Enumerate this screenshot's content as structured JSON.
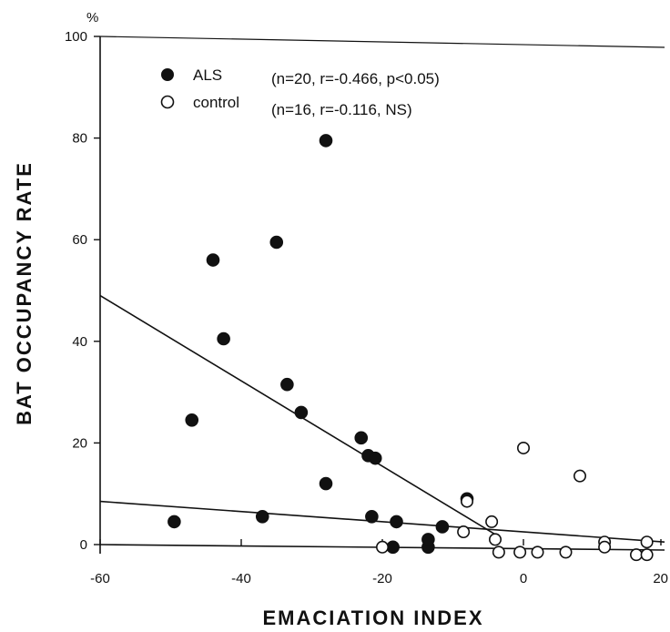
{
  "chart_data": {
    "type": "scatter",
    "xlabel": "EMACIATION INDEX",
    "ylabel": "BAT OCCUPANCY RATE",
    "yunit": "%",
    "xlim": [
      -60,
      20
    ],
    "ylim": [
      0,
      100
    ],
    "xticks": [
      -60,
      -40,
      -20,
      0,
      20
    ],
    "xtick_labels": [
      "-60",
      "-40",
      "-20",
      "0",
      "20"
    ],
    "yticks": [
      0,
      20,
      40,
      60,
      80,
      100
    ],
    "ytick_labels": [
      "0",
      "20",
      "40",
      "60",
      "80",
      "100"
    ],
    "grid": false,
    "legend_position": "top-left",
    "series": [
      {
        "name": "ALS",
        "stats": "(n=20, r=-0.466, p<0.05)",
        "marker": "filled-circle",
        "color": "#111111",
        "points": [
          [
            -49.5,
            4.5
          ],
          [
            -47,
            24.5
          ],
          [
            -44,
            56
          ],
          [
            -42.5,
            40.5
          ],
          [
            -37,
            5.5
          ],
          [
            -35,
            59.5
          ],
          [
            -33.5,
            31.5
          ],
          [
            -31.5,
            26
          ],
          [
            -28,
            79.5
          ],
          [
            -28,
            12
          ],
          [
            -23,
            21
          ],
          [
            -22,
            17.5
          ],
          [
            -21.5,
            5.5
          ],
          [
            -21,
            17
          ],
          [
            -18.5,
            -0.5
          ],
          [
            -18,
            4.5
          ],
          [
            -13.5,
            -0.5
          ],
          [
            -13.5,
            1
          ],
          [
            -11.5,
            3.5
          ],
          [
            -8,
            9
          ]
        ],
        "regression": [
          [
            -60,
            49
          ],
          [
            -4,
            2
          ]
        ]
      },
      {
        "name": "control",
        "stats": "(n=16, r=-0.116, NS)",
        "marker": "open-circle",
        "color": "#111111",
        "points": [
          [
            -20,
            -0.5
          ],
          [
            -8.5,
            2.5
          ],
          [
            -8,
            8.5
          ],
          [
            -4.5,
            4.5
          ],
          [
            -4,
            1
          ],
          [
            -3.5,
            -1.5
          ],
          [
            -0.5,
            -1.5
          ],
          [
            0,
            19
          ],
          [
            2,
            -1.5
          ],
          [
            6,
            -1.5
          ],
          [
            8,
            13.5
          ],
          [
            11.5,
            0.5
          ],
          [
            11.5,
            -0.5
          ],
          [
            16,
            -2
          ],
          [
            17.5,
            0.5
          ],
          [
            17.5,
            -2
          ]
        ],
        "regression": [
          [
            -60,
            8.5
          ],
          [
            20,
            0.5
          ]
        ]
      }
    ]
  }
}
